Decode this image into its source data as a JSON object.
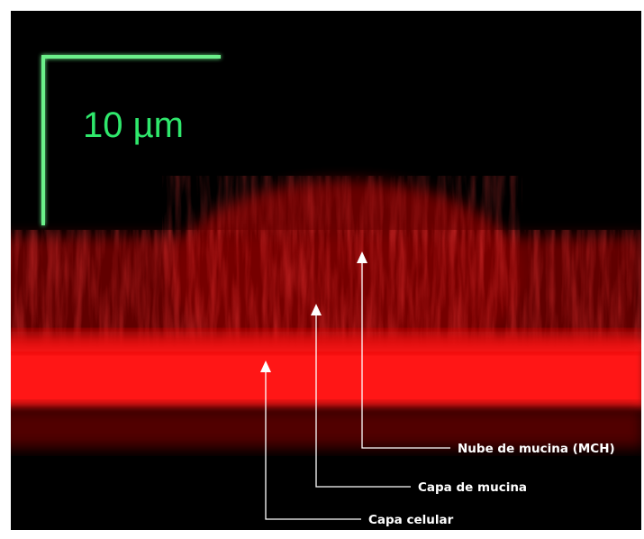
{
  "scale_bar": {
    "label": "10 µm"
  },
  "annotations": [
    {
      "label": "Nube de mucina (MCH)"
    },
    {
      "label": "Capa de mucina"
    },
    {
      "label": "Capa celular"
    }
  ]
}
